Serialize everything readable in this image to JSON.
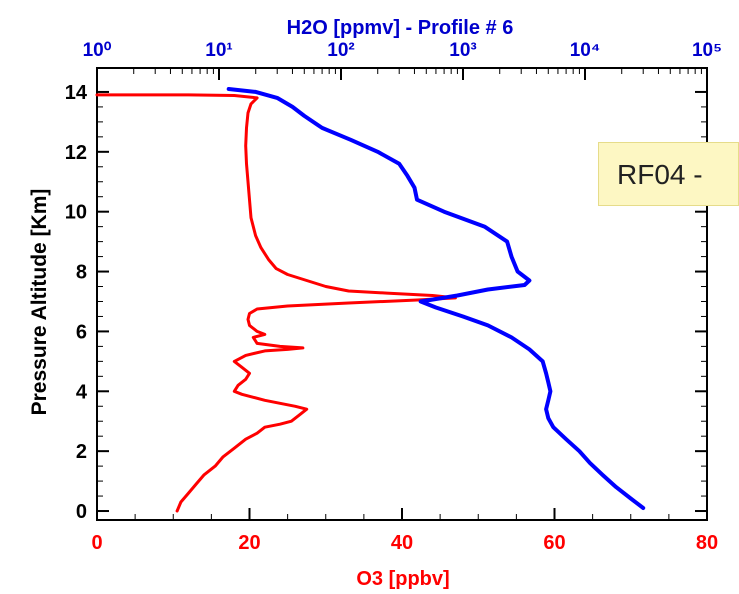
{
  "callout": {
    "text": "RF04 -"
  },
  "chart_data": {
    "type": "line",
    "title": "H2O [ppmv] - Profile # 6",
    "xlabel_bottom": "O3 [ppbv]",
    "xlabel_top": "H2O [ppmv]",
    "ylabel": "Pressure Altitude [Km]",
    "x_bottom_lim": [
      0,
      80
    ],
    "x_bottom_ticks": [
      "0",
      "20",
      "40",
      "60",
      "80"
    ],
    "x_top_lim": [
      1,
      100000
    ],
    "x_top_scale": "log",
    "x_top_ticks": [
      "10⁰",
      "10¹",
      "10²",
      "10³",
      "10⁴",
      "10⁵"
    ],
    "ylim": [
      -0.3,
      14.8
    ],
    "y_ticks": [
      "0",
      "2",
      "4",
      "6",
      "8",
      "10",
      "12",
      "14"
    ],
    "grid": false,
    "colors": {
      "o3": "#ff0000",
      "h2o": "#0000ff",
      "top_axis": "#0000cc",
      "bottom_axis": "#ff0000",
      "axes": "#000000"
    },
    "series": [
      {
        "axis": "bottom",
        "color": "#ff0000",
        "points": [
          [
            10.5,
            0
          ],
          [
            11,
            0.3
          ],
          [
            12,
            0.6
          ],
          [
            13,
            0.9
          ],
          [
            14,
            1.2
          ],
          [
            15.5,
            1.5
          ],
          [
            16.5,
            1.8
          ],
          [
            18,
            2.1
          ],
          [
            19.5,
            2.4
          ],
          [
            21,
            2.6
          ],
          [
            22,
            2.8
          ],
          [
            24,
            2.9
          ],
          [
            25.5,
            3.0
          ],
          [
            26.5,
            3.2
          ],
          [
            27.5,
            3.4
          ],
          [
            26,
            3.5
          ],
          [
            24,
            3.6
          ],
          [
            22,
            3.7
          ],
          [
            20.5,
            3.8
          ],
          [
            19,
            3.9
          ],
          [
            18,
            4.0
          ],
          [
            18.5,
            4.2
          ],
          [
            19.5,
            4.4
          ],
          [
            20,
            4.6
          ],
          [
            19,
            4.8
          ],
          [
            18,
            5.0
          ],
          [
            19.5,
            5.2
          ],
          [
            22,
            5.35
          ],
          [
            25,
            5.4
          ],
          [
            27,
            5.45
          ],
          [
            24,
            5.5
          ],
          [
            21,
            5.6
          ],
          [
            20.5,
            5.8
          ],
          [
            22,
            5.9
          ],
          [
            21,
            6.0
          ],
          [
            20,
            6.2
          ],
          [
            19.8,
            6.4
          ],
          [
            20,
            6.6
          ],
          [
            21,
            6.75
          ],
          [
            25,
            6.85
          ],
          [
            33,
            6.95
          ],
          [
            42,
            7.05
          ],
          [
            47,
            7.12
          ],
          [
            44,
            7.2
          ],
          [
            38,
            7.28
          ],
          [
            33,
            7.35
          ],
          [
            30,
            7.5
          ],
          [
            27.5,
            7.7
          ],
          [
            25,
            7.9
          ],
          [
            23.5,
            8.1
          ],
          [
            22.5,
            8.4
          ],
          [
            21.5,
            8.8
          ],
          [
            20.8,
            9.2
          ],
          [
            20.2,
            9.8
          ],
          [
            20,
            10.4
          ],
          [
            19.8,
            11
          ],
          [
            19.6,
            11.6
          ],
          [
            19.5,
            12.2
          ],
          [
            19.6,
            12.8
          ],
          [
            19.8,
            13.3
          ],
          [
            20.2,
            13.6
          ],
          [
            21,
            13.8
          ],
          [
            18,
            13.88
          ],
          [
            12,
            13.9
          ],
          [
            5,
            13.9
          ],
          [
            0,
            13.9
          ]
        ]
      },
      {
        "axis": "top",
        "color": "#0000ff",
        "points": [
          [
            30000,
            0.1
          ],
          [
            24000,
            0.4
          ],
          [
            18000,
            0.8
          ],
          [
            14000,
            1.2
          ],
          [
            11000,
            1.6
          ],
          [
            9000,
            2.0
          ],
          [
            7000,
            2.4
          ],
          [
            5500,
            2.8
          ],
          [
            5000,
            3.1
          ],
          [
            4800,
            3.4
          ],
          [
            5000,
            3.7
          ],
          [
            5200,
            4.0
          ],
          [
            5000,
            4.3
          ],
          [
            4800,
            4.6
          ],
          [
            4500,
            5.0
          ],
          [
            3500,
            5.4
          ],
          [
            2500,
            5.8
          ],
          [
            1600,
            6.2
          ],
          [
            1000,
            6.5
          ],
          [
            600,
            6.8
          ],
          [
            450,
            7.0
          ],
          [
            900,
            7.2
          ],
          [
            1600,
            7.4
          ],
          [
            3200,
            7.55
          ],
          [
            3500,
            7.7
          ],
          [
            2800,
            8.0
          ],
          [
            2500,
            8.5
          ],
          [
            2300,
            9.0
          ],
          [
            1500,
            9.5
          ],
          [
            700,
            10.0
          ],
          [
            420,
            10.4
          ],
          [
            400,
            10.8
          ],
          [
            350,
            11.2
          ],
          [
            300,
            11.6
          ],
          [
            200,
            12.0
          ],
          [
            120,
            12.4
          ],
          [
            70,
            12.8
          ],
          [
            50,
            13.2
          ],
          [
            40,
            13.5
          ],
          [
            30,
            13.8
          ],
          [
            20,
            14.0
          ],
          [
            12,
            14.1
          ]
        ]
      }
    ]
  }
}
